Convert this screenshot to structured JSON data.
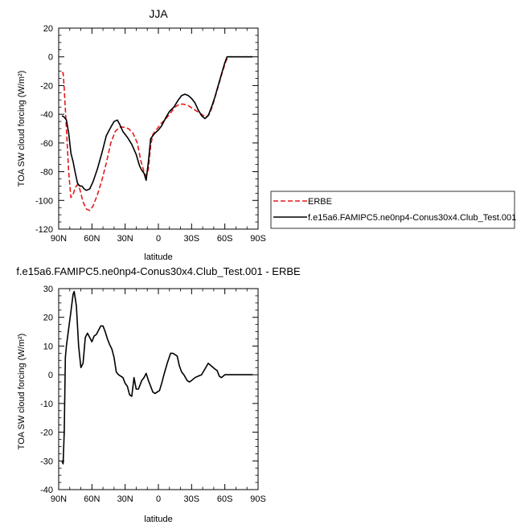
{
  "chart_data": [
    {
      "type": "line",
      "title": "JJA",
      "xlabel": "latitude",
      "ylabel": "TOA SW cloud forcing (W/m²)",
      "xlim": [
        90,
        -90
      ],
      "ylim": [
        -120,
        20
      ],
      "x_ticks": [
        90,
        60,
        30,
        0,
        -30,
        -60,
        -90
      ],
      "x_tick_labels": [
        "90N",
        "60N",
        "30N",
        "0",
        "30S",
        "60S",
        "90S"
      ],
      "y_ticks": [
        20,
        0,
        -20,
        -40,
        -60,
        -80,
        -100,
        -120
      ],
      "y_tick_labels": [
        "20",
        "0",
        "-20",
        "-40",
        "-60",
        "-80",
        "-100",
        "-120"
      ],
      "legend_position": "right",
      "series": [
        {
          "name": "ERBE",
          "color": "#e31a1c",
          "dash": "dashed",
          "points": [
            [
              87,
              -11
            ],
            [
              86,
              -11
            ],
            [
              85,
              -22
            ],
            [
              83,
              -50
            ],
            [
              81,
              -80
            ],
            [
              79,
              -98
            ],
            [
              77,
              -96
            ],
            [
              75,
              -91
            ],
            [
              73,
              -89
            ],
            [
              71,
              -92
            ],
            [
              68,
              -101
            ],
            [
              65,
              -106
            ],
            [
              62,
              -107
            ],
            [
              59,
              -104
            ],
            [
              55,
              -96
            ],
            [
              51,
              -86
            ],
            [
              47,
              -74
            ],
            [
              43,
              -60
            ],
            [
              39,
              -52
            ],
            [
              35,
              -49
            ],
            [
              31,
              -49
            ],
            [
              27,
              -50
            ],
            [
              23,
              -53
            ],
            [
              19,
              -60
            ],
            [
              16,
              -72
            ],
            [
              13,
              -80
            ],
            [
              11,
              -83
            ],
            [
              9,
              -78
            ],
            [
              7,
              -62
            ],
            [
              5,
              -54
            ],
            [
              3,
              -52
            ],
            [
              0,
              -49
            ],
            [
              -3,
              -46
            ],
            [
              -7,
              -43
            ],
            [
              -11,
              -39
            ],
            [
              -15,
              -35
            ],
            [
              -19,
              -33
            ],
            [
              -23,
              -33
            ],
            [
              -27,
              -34
            ],
            [
              -31,
              -36
            ],
            [
              -35,
              -38
            ],
            [
              -39,
              -40
            ],
            [
              -43,
              -42
            ],
            [
              -46,
              -40
            ],
            [
              -49,
              -34
            ],
            [
              -52,
              -26
            ],
            [
              -55,
              -18
            ],
            [
              -58,
              -10
            ],
            [
              -61,
              -3
            ],
            [
              -63,
              0
            ],
            [
              -66,
              0
            ],
            [
              -70,
              0
            ],
            [
              -75,
              0
            ],
            [
              -80,
              0
            ],
            [
              -85,
              0
            ]
          ]
        },
        {
          "name": "f.e15a6.FAMIPC5.ne0np4-Conus30x4.Club_Test.001",
          "color": "#000000",
          "dash": "solid",
          "points": [
            [
              87,
              -41
            ],
            [
              85,
              -42
            ],
            [
              83,
              -44
            ],
            [
              81,
              -53
            ],
            [
              79,
              -67
            ],
            [
              77,
              -73
            ],
            [
              75,
              -81
            ],
            [
              73,
              -88
            ],
            [
              71,
              -90
            ],
            [
              69,
              -90
            ],
            [
              67,
              -92
            ],
            [
              65,
              -93
            ],
            [
              62,
              -92
            ],
            [
              59,
              -87
            ],
            [
              55,
              -78
            ],
            [
              51,
              -67
            ],
            [
              47,
              -55
            ],
            [
              43,
              -49
            ],
            [
              40,
              -45
            ],
            [
              37,
              -44
            ],
            [
              35,
              -47
            ],
            [
              32,
              -52
            ],
            [
              28,
              -56
            ],
            [
              24,
              -61
            ],
            [
              20,
              -68
            ],
            [
              17,
              -76
            ],
            [
              15,
              -79
            ],
            [
              13,
              -81
            ],
            [
              11,
              -86
            ],
            [
              9,
              -73
            ],
            [
              7,
              -57
            ],
            [
              5,
              -55
            ],
            [
              3,
              -53
            ],
            [
              0,
              -51
            ],
            [
              -3,
              -48
            ],
            [
              -7,
              -42
            ],
            [
              -10,
              -38
            ],
            [
              -14,
              -35
            ],
            [
              -18,
              -30
            ],
            [
              -21,
              -27
            ],
            [
              -24,
              -26
            ],
            [
              -27,
              -27
            ],
            [
              -30,
              -29
            ],
            [
              -33,
              -32
            ],
            [
              -36,
              -37
            ],
            [
              -39,
              -41
            ],
            [
              -42,
              -43
            ],
            [
              -45,
              -41
            ],
            [
              -48,
              -35
            ],
            [
              -51,
              -28
            ],
            [
              -54,
              -20
            ],
            [
              -57,
              -12
            ],
            [
              -60,
              -4
            ],
            [
              -62,
              0
            ],
            [
              -64,
              0
            ],
            [
              -67,
              0
            ],
            [
              -70,
              0
            ],
            [
              -75,
              0
            ],
            [
              -80,
              0
            ],
            [
              -85,
              0
            ]
          ]
        }
      ]
    },
    {
      "type": "line",
      "title": "f.e15a6.FAMIPC5.ne0np4-Conus30x4.Club_Test.001 - ERBE",
      "xlabel": "latitude",
      "ylabel": "TOA SW cloud forcing (W/m²)",
      "xlim": [
        90,
        -90
      ],
      "ylim": [
        -40,
        30
      ],
      "x_ticks": [
        90,
        60,
        30,
        0,
        -30,
        -60,
        -90
      ],
      "x_tick_labels": [
        "90N",
        "60N",
        "30N",
        "0",
        "30S",
        "60S",
        "90S"
      ],
      "y_ticks": [
        30,
        20,
        10,
        0,
        -10,
        -20,
        -30,
        -40
      ],
      "y_tick_labels": [
        "30",
        "20",
        "10",
        "0",
        "-10",
        "-20",
        "-30",
        "-40"
      ],
      "series": [
        {
          "color": "#000000",
          "dash": "solid",
          "points": [
            [
              87,
              -30
            ],
            [
              86,
              -31
            ],
            [
              85,
              -20
            ],
            [
              84,
              6
            ],
            [
              83,
              10
            ],
            [
              81,
              16
            ],
            [
              79,
              22
            ],
            [
              77,
              28
            ],
            [
              76,
              29
            ],
            [
              74,
              24
            ],
            [
              72,
              10
            ],
            [
              70,
              2.5
            ],
            [
              68,
              4
            ],
            [
              66,
              13
            ],
            [
              64,
              14.5
            ],
            [
              62,
              13
            ],
            [
              60,
              11.5
            ],
            [
              58,
              13.5
            ],
            [
              56,
              14
            ],
            [
              54,
              15.5
            ],
            [
              52,
              17
            ],
            [
              50,
              17
            ],
            [
              48,
              15
            ],
            [
              46,
              12.5
            ],
            [
              44,
              10.5
            ],
            [
              42,
              9
            ],
            [
              40,
              6
            ],
            [
              38,
              1
            ],
            [
              36,
              0
            ],
            [
              34,
              -0.5
            ],
            [
              32,
              -1
            ],
            [
              30,
              -3
            ],
            [
              28,
              -4
            ],
            [
              26,
              -7
            ],
            [
              24,
              -7.5
            ],
            [
              22,
              -1
            ],
            [
              20,
              -5
            ],
            [
              18,
              -5
            ],
            [
              17,
              -4
            ],
            [
              15,
              -2
            ],
            [
              13,
              -1
            ],
            [
              11,
              0.5
            ],
            [
              9,
              -2
            ],
            [
              7,
              -4
            ],
            [
              5,
              -6
            ],
            [
              3,
              -6.5
            ],
            [
              1,
              -6
            ],
            [
              -1,
              -5.5
            ],
            [
              -3,
              -3
            ],
            [
              -5,
              0
            ],
            [
              -8,
              4
            ],
            [
              -11,
              7.5
            ],
            [
              -13,
              7.5
            ],
            [
              -15,
              7
            ],
            [
              -17,
              6.5
            ],
            [
              -19,
              3
            ],
            [
              -21,
              1
            ],
            [
              -23,
              0
            ],
            [
              -26,
              -2
            ],
            [
              -28,
              -2.5
            ],
            [
              -30,
              -2
            ],
            [
              -33,
              -1
            ],
            [
              -36,
              -0.5
            ],
            [
              -39,
              0
            ],
            [
              -42,
              2
            ],
            [
              -45,
              4
            ],
            [
              -48,
              3
            ],
            [
              -51,
              2
            ],
            [
              -53,
              1.5
            ],
            [
              -55,
              -0.5
            ],
            [
              -57,
              -1
            ],
            [
              -60,
              0
            ],
            [
              -65,
              0
            ],
            [
              -70,
              0
            ],
            [
              -75,
              0
            ],
            [
              -80,
              0
            ],
            [
              -85,
              0
            ]
          ]
        }
      ]
    }
  ]
}
